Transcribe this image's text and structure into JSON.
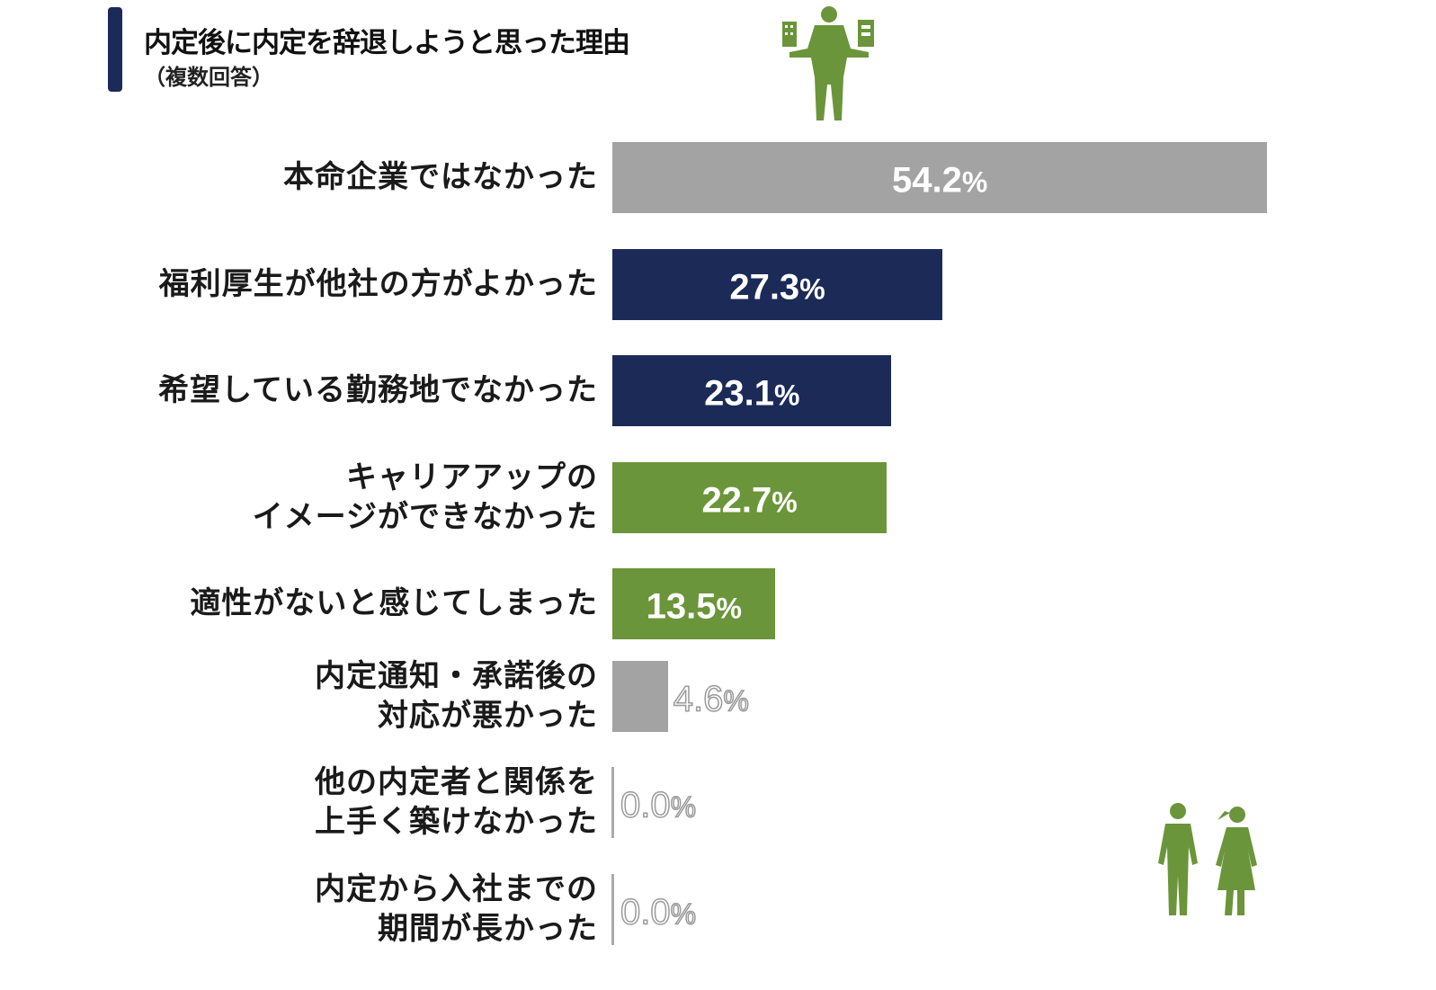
{
  "title": "内定後に内定を辞退しようと思った理由",
  "subtitle": "（複数回答）",
  "colors": {
    "gray": "#a3a3a3",
    "navy": "#1b2a57",
    "green": "#6b953a",
    "accent": "#1b2a57"
  },
  "chart_data": {
    "type": "bar",
    "orientation": "horizontal",
    "title": "内定後に内定を辞退しようと思った理由",
    "subtitle": "（複数回答）",
    "unit": "%",
    "categories": [
      "本命企業ではなかった",
      "福利厚生が他社の方がよかった",
      "希望している勤務地でなかった",
      "キャリアアップの\nイメージができなかった",
      "適性がないと感じてしまった",
      "内定通知・承諾後の\n対応が悪かった",
      "他の内定者と関係を\n上手く築けなかった",
      "内定から入社までの\n期間が長かった"
    ],
    "values": [
      54.2,
      27.3,
      23.1,
      22.7,
      13.5,
      4.6,
      0.0,
      0.0
    ],
    "labels": [
      "54.2",
      "27.3",
      "23.1",
      "22.7",
      "13.5",
      "4.6",
      "0.0",
      "0.0"
    ],
    "bar_colors": [
      "gray",
      "navy",
      "navy",
      "green",
      "green",
      "gray",
      "gray",
      "gray"
    ],
    "xlim": [
      0,
      54.2
    ],
    "grid": false
  }
}
